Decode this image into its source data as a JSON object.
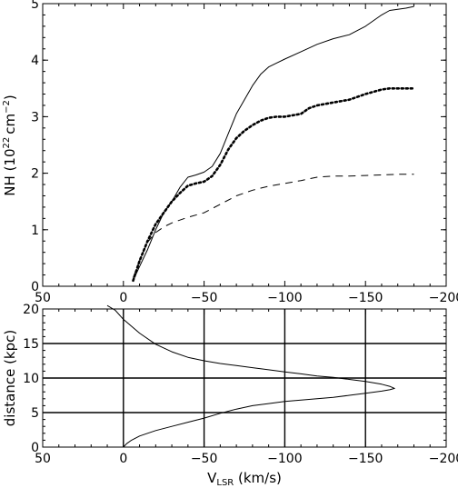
{
  "chart_data": [
    {
      "type": "line",
      "ylabel": "NH (10 22 cm⁻²)",
      "ylabel_parts": {
        "prefix": "NH  (10",
        "exp1": "22",
        "mid": "cm",
        "exp2": "−2",
        "suffix": ")"
      },
      "xlim": [
        50,
        -200
      ],
      "ylim": [
        0,
        5
      ],
      "x_ticks": [
        50,
        0,
        -50,
        -100,
        -150,
        -200
      ],
      "x_tick_labels": [
        "50",
        "0",
        "−50",
        "−100",
        "−150",
        "−200"
      ],
      "y_ticks": [
        0,
        1,
        2,
        3,
        4,
        5
      ],
      "y_tick_labels": [
        "0",
        "1",
        "2",
        "3",
        "4",
        "5"
      ],
      "grid": false,
      "series": [
        {
          "style": "solid",
          "x": [
            -6,
            -10,
            -15,
            -20,
            -25,
            -30,
            -35,
            -40,
            -45,
            -50,
            -55,
            -60,
            -65,
            -70,
            -75,
            -80,
            -85,
            -90,
            -95,
            -100,
            -110,
            -120,
            -130,
            -140,
            -150,
            -160,
            -165,
            -170,
            -175,
            -180
          ],
          "y": [
            0.1,
            0.35,
            0.65,
            1.0,
            1.3,
            1.5,
            1.75,
            1.93,
            1.97,
            2.02,
            2.12,
            2.35,
            2.7,
            3.05,
            3.3,
            3.55,
            3.75,
            3.88,
            3.95,
            4.02,
            4.15,
            4.28,
            4.38,
            4.45,
            4.6,
            4.8,
            4.88,
            4.9,
            4.92,
            4.95
          ]
        },
        {
          "style": "dotted",
          "x": [
            -6,
            -10,
            -15,
            -20,
            -25,
            -30,
            -35,
            -40,
            -45,
            -50,
            -55,
            -60,
            -65,
            -70,
            -75,
            -80,
            -85,
            -90,
            -95,
            -100,
            -110,
            -115,
            -120,
            -130,
            -140,
            -150,
            -160,
            -165,
            -170,
            -180
          ],
          "y": [
            0.1,
            0.45,
            0.8,
            1.1,
            1.3,
            1.5,
            1.65,
            1.78,
            1.82,
            1.85,
            1.95,
            2.15,
            2.42,
            2.62,
            2.75,
            2.85,
            2.93,
            2.98,
            3.0,
            3.0,
            3.05,
            3.15,
            3.2,
            3.25,
            3.3,
            3.4,
            3.48,
            3.5,
            3.5,
            3.5
          ]
        },
        {
          "style": "dashed",
          "x": [
            -6,
            -10,
            -15,
            -20,
            -25,
            -30,
            -40,
            -50,
            -60,
            -70,
            -80,
            -90,
            -100,
            -110,
            -120,
            -130,
            -140,
            -150,
            -160,
            -170,
            -180
          ],
          "y": [
            0.15,
            0.45,
            0.78,
            0.95,
            1.05,
            1.12,
            1.22,
            1.3,
            1.45,
            1.6,
            1.7,
            1.77,
            1.82,
            1.87,
            1.93,
            1.95,
            1.95,
            1.96,
            1.97,
            1.98,
            1.98
          ]
        }
      ]
    },
    {
      "type": "line",
      "xlabel": "V LSR (km/s)",
      "xlabel_parts": {
        "v": "V",
        "sub": "LSR",
        "rest": " (km/s)"
      },
      "ylabel": "distance  (kpc)",
      "xlim": [
        50,
        -200
      ],
      "ylim": [
        0,
        20
      ],
      "x_ticks": [
        50,
        0,
        -50,
        -100,
        -150,
        -200
      ],
      "x_tick_labels": [
        "50",
        "0",
        "−50",
        "−100",
        "−150",
        "−200"
      ],
      "y_ticks": [
        0,
        5,
        10,
        15,
        20
      ],
      "y_tick_labels": [
        "0",
        "5",
        "10",
        "15",
        "20"
      ],
      "grid_x": [
        0,
        -50,
        -100,
        -150
      ],
      "grid_y": [
        5,
        10,
        15
      ],
      "series": [
        {
          "style": "solid",
          "x": [
            0,
            -2,
            -5,
            -10,
            -15,
            -20,
            -30,
            -40,
            -50,
            -60,
            -70,
            -80,
            -90,
            -100,
            -110,
            -120,
            -130,
            -140,
            -150,
            -160,
            -165,
            -168,
            -165,
            -160,
            -150,
            -140,
            -130,
            -120,
            -110,
            -100,
            -90,
            -80,
            -70,
            -60,
            -50,
            -40,
            -30,
            -20,
            -10,
            0,
            5,
            10
          ],
          "y": [
            0,
            0.5,
            1.0,
            1.6,
            2.0,
            2.4,
            3.0,
            3.6,
            4.2,
            4.9,
            5.5,
            6.0,
            6.3,
            6.6,
            6.8,
            7.0,
            7.2,
            7.5,
            7.8,
            8.1,
            8.3,
            8.5,
            8.8,
            9.1,
            9.5,
            9.8,
            10.1,
            10.3,
            10.6,
            10.9,
            11.2,
            11.5,
            11.8,
            12.1,
            12.5,
            13.0,
            13.8,
            14.9,
            16.5,
            18.5,
            19.8,
            20.5
          ]
        }
      ]
    }
  ]
}
